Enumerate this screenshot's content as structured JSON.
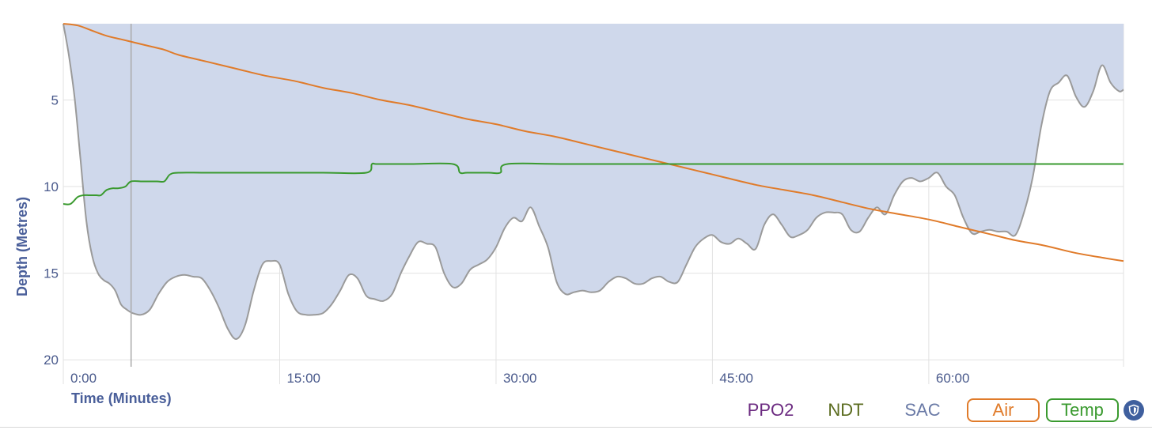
{
  "chart_data": {
    "type": "area",
    "xlabel": "Time (Minutes)",
    "ylabel": "Depth (Metres)",
    "x_ticks": [
      "0:00",
      "15:00",
      "30:00",
      "45:00",
      "60:00"
    ],
    "x_tick_values": [
      0,
      15,
      30,
      45,
      60
    ],
    "y_ticks": [
      "5",
      "10",
      "15",
      "20"
    ],
    "y_tick_values": [
      5,
      10,
      15,
      20
    ],
    "xlim": [
      0,
      73.5
    ],
    "ylim": [
      0.6,
      20.4
    ],
    "y_inverted": true,
    "grid": true,
    "cursor_time": 4.7,
    "depth_series": {
      "name": "Depth",
      "x": [
        0,
        0.4,
        0.8,
        1.2,
        1.6,
        2.0,
        2.4,
        2.8,
        3.2,
        3.6,
        4.0,
        4.4,
        4.8,
        5.4,
        6.0,
        6.6,
        7.2,
        7.8,
        8.4,
        9.0,
        9.6,
        10.2,
        10.8,
        11.4,
        12.0,
        12.6,
        13.2,
        13.8,
        14.4,
        15.0,
        15.6,
        16.2,
        16.8,
        17.4,
        18.0,
        18.6,
        19.2,
        19.8,
        20.4,
        21.0,
        21.6,
        22.2,
        22.8,
        23.4,
        24.0,
        24.6,
        25.2,
        25.8,
        26.4,
        27.0,
        27.6,
        28.2,
        28.8,
        29.4,
        30.0,
        30.6,
        31.2,
        31.8,
        32.4,
        33.0,
        33.6,
        34.2,
        34.8,
        35.4,
        36.0,
        36.6,
        37.2,
        37.8,
        38.4,
        39.0,
        39.6,
        40.2,
        40.8,
        41.4,
        42.0,
        42.6,
        43.2,
        43.8,
        44.4,
        45.0,
        45.6,
        46.2,
        46.8,
        47.4,
        48.0,
        48.6,
        49.2,
        49.8,
        50.4,
        51.0,
        51.6,
        52.2,
        52.8,
        53.4,
        54.0,
        54.6,
        55.2,
        55.8,
        56.4,
        57.0,
        57.6,
        58.2,
        58.8,
        59.4,
        60.0,
        60.6,
        61.2,
        61.8,
        62.4,
        63.0,
        63.6,
        64.2,
        64.8,
        65.4,
        66.0,
        66.6,
        67.2,
        67.8,
        68.4,
        69.0,
        69.6,
        70.2,
        70.8,
        71.4,
        72.0,
        72.6,
        73.2,
        73.5
      ],
      "values": [
        0.6,
        2.5,
        5.0,
        8.5,
        12.0,
        14.0,
        15.0,
        15.4,
        15.6,
        16.0,
        16.8,
        17.1,
        17.3,
        17.4,
        17.1,
        16.2,
        15.5,
        15.2,
        15.1,
        15.2,
        15.3,
        16.0,
        17.0,
        18.2,
        18.8,
        18.0,
        16.0,
        14.5,
        14.3,
        14.5,
        16.2,
        17.2,
        17.4,
        17.4,
        17.3,
        16.8,
        16.0,
        15.1,
        15.3,
        16.3,
        16.5,
        16.6,
        16.2,
        15.0,
        14.0,
        13.2,
        13.3,
        13.5,
        15.0,
        15.8,
        15.6,
        14.8,
        14.5,
        14.2,
        13.5,
        12.4,
        11.8,
        12.0,
        11.2,
        12.3,
        13.5,
        15.5,
        16.2,
        16.1,
        16.0,
        16.1,
        16.0,
        15.5,
        15.2,
        15.3,
        15.6,
        15.6,
        15.3,
        15.2,
        15.5,
        15.5,
        14.5,
        13.5,
        13.0,
        12.8,
        13.2,
        13.3,
        13.0,
        13.3,
        13.6,
        12.2,
        11.6,
        12.2,
        12.9,
        12.8,
        12.5,
        11.8,
        11.5,
        11.5,
        11.6,
        12.5,
        12.6,
        11.8,
        11.2,
        11.6,
        10.5,
        9.7,
        9.5,
        9.7,
        9.5,
        9.2,
        10.0,
        10.5,
        11.8,
        12.7,
        12.6,
        12.5,
        12.6,
        12.6,
        12.8,
        11.5,
        9.5,
        6.5,
        4.5,
        4.0,
        3.6,
        4.8,
        5.4,
        4.5,
        3.0,
        4.0,
        4.5,
        4.4
      ]
    },
    "series": [
      {
        "name": "Air",
        "color": "#e07b2a",
        "x": [
          0,
          1,
          2,
          3,
          4,
          5,
          6,
          7,
          8,
          10,
          12,
          14,
          16,
          18,
          20,
          22,
          24,
          26,
          28,
          30,
          32,
          34,
          36,
          38,
          40,
          42,
          44,
          46,
          48,
          50,
          52,
          54,
          56,
          58,
          60,
          62,
          64,
          66,
          68,
          70,
          72,
          73.5
        ],
        "values": [
          0.6,
          0.7,
          1.0,
          1.3,
          1.5,
          1.7,
          1.9,
          2.1,
          2.4,
          2.8,
          3.2,
          3.6,
          3.9,
          4.3,
          4.6,
          5.0,
          5.3,
          5.7,
          6.1,
          6.4,
          6.8,
          7.1,
          7.5,
          7.9,
          8.3,
          8.7,
          9.1,
          9.5,
          9.9,
          10.2,
          10.5,
          10.9,
          11.3,
          11.6,
          11.9,
          12.3,
          12.7,
          13.1,
          13.4,
          13.8,
          14.1,
          14.3
        ]
      },
      {
        "name": "Temp",
        "color": "#3a9a2f",
        "x": [
          0,
          0.5,
          1.0,
          1.4,
          1.8,
          2.3,
          2.6,
          3.0,
          3.4,
          3.8,
          4.3,
          4.7,
          5.5,
          6.5,
          7.0,
          7.4,
          8.0,
          10,
          14,
          18,
          21.0,
          21.4,
          21.8,
          24,
          27,
          27.5,
          28,
          29.5,
          30.3,
          30.8,
          35,
          45,
          55,
          65,
          73.5
        ],
        "values": [
          11.0,
          11.0,
          10.6,
          10.5,
          10.5,
          10.5,
          10.5,
          10.2,
          10.1,
          10.1,
          10.0,
          9.7,
          9.7,
          9.7,
          9.7,
          9.3,
          9.2,
          9.2,
          9.2,
          9.2,
          9.2,
          8.7,
          8.7,
          8.7,
          8.7,
          9.2,
          9.2,
          9.2,
          9.2,
          8.7,
          8.7,
          8.7,
          8.7,
          8.7,
          8.7
        ]
      }
    ]
  },
  "toolbar": {
    "ppo2_label": "PPO2",
    "ndt_label": "NDT",
    "sac_label": "SAC",
    "air_label": "Air",
    "temp_label": "Temp",
    "shield_icon": "shield-icon"
  },
  "colors": {
    "depth_fill": "#cfd8eb",
    "depth_line": "#9a9a9a",
    "grid": "#e2e2e2",
    "axis_text": "#4a5a8c"
  }
}
